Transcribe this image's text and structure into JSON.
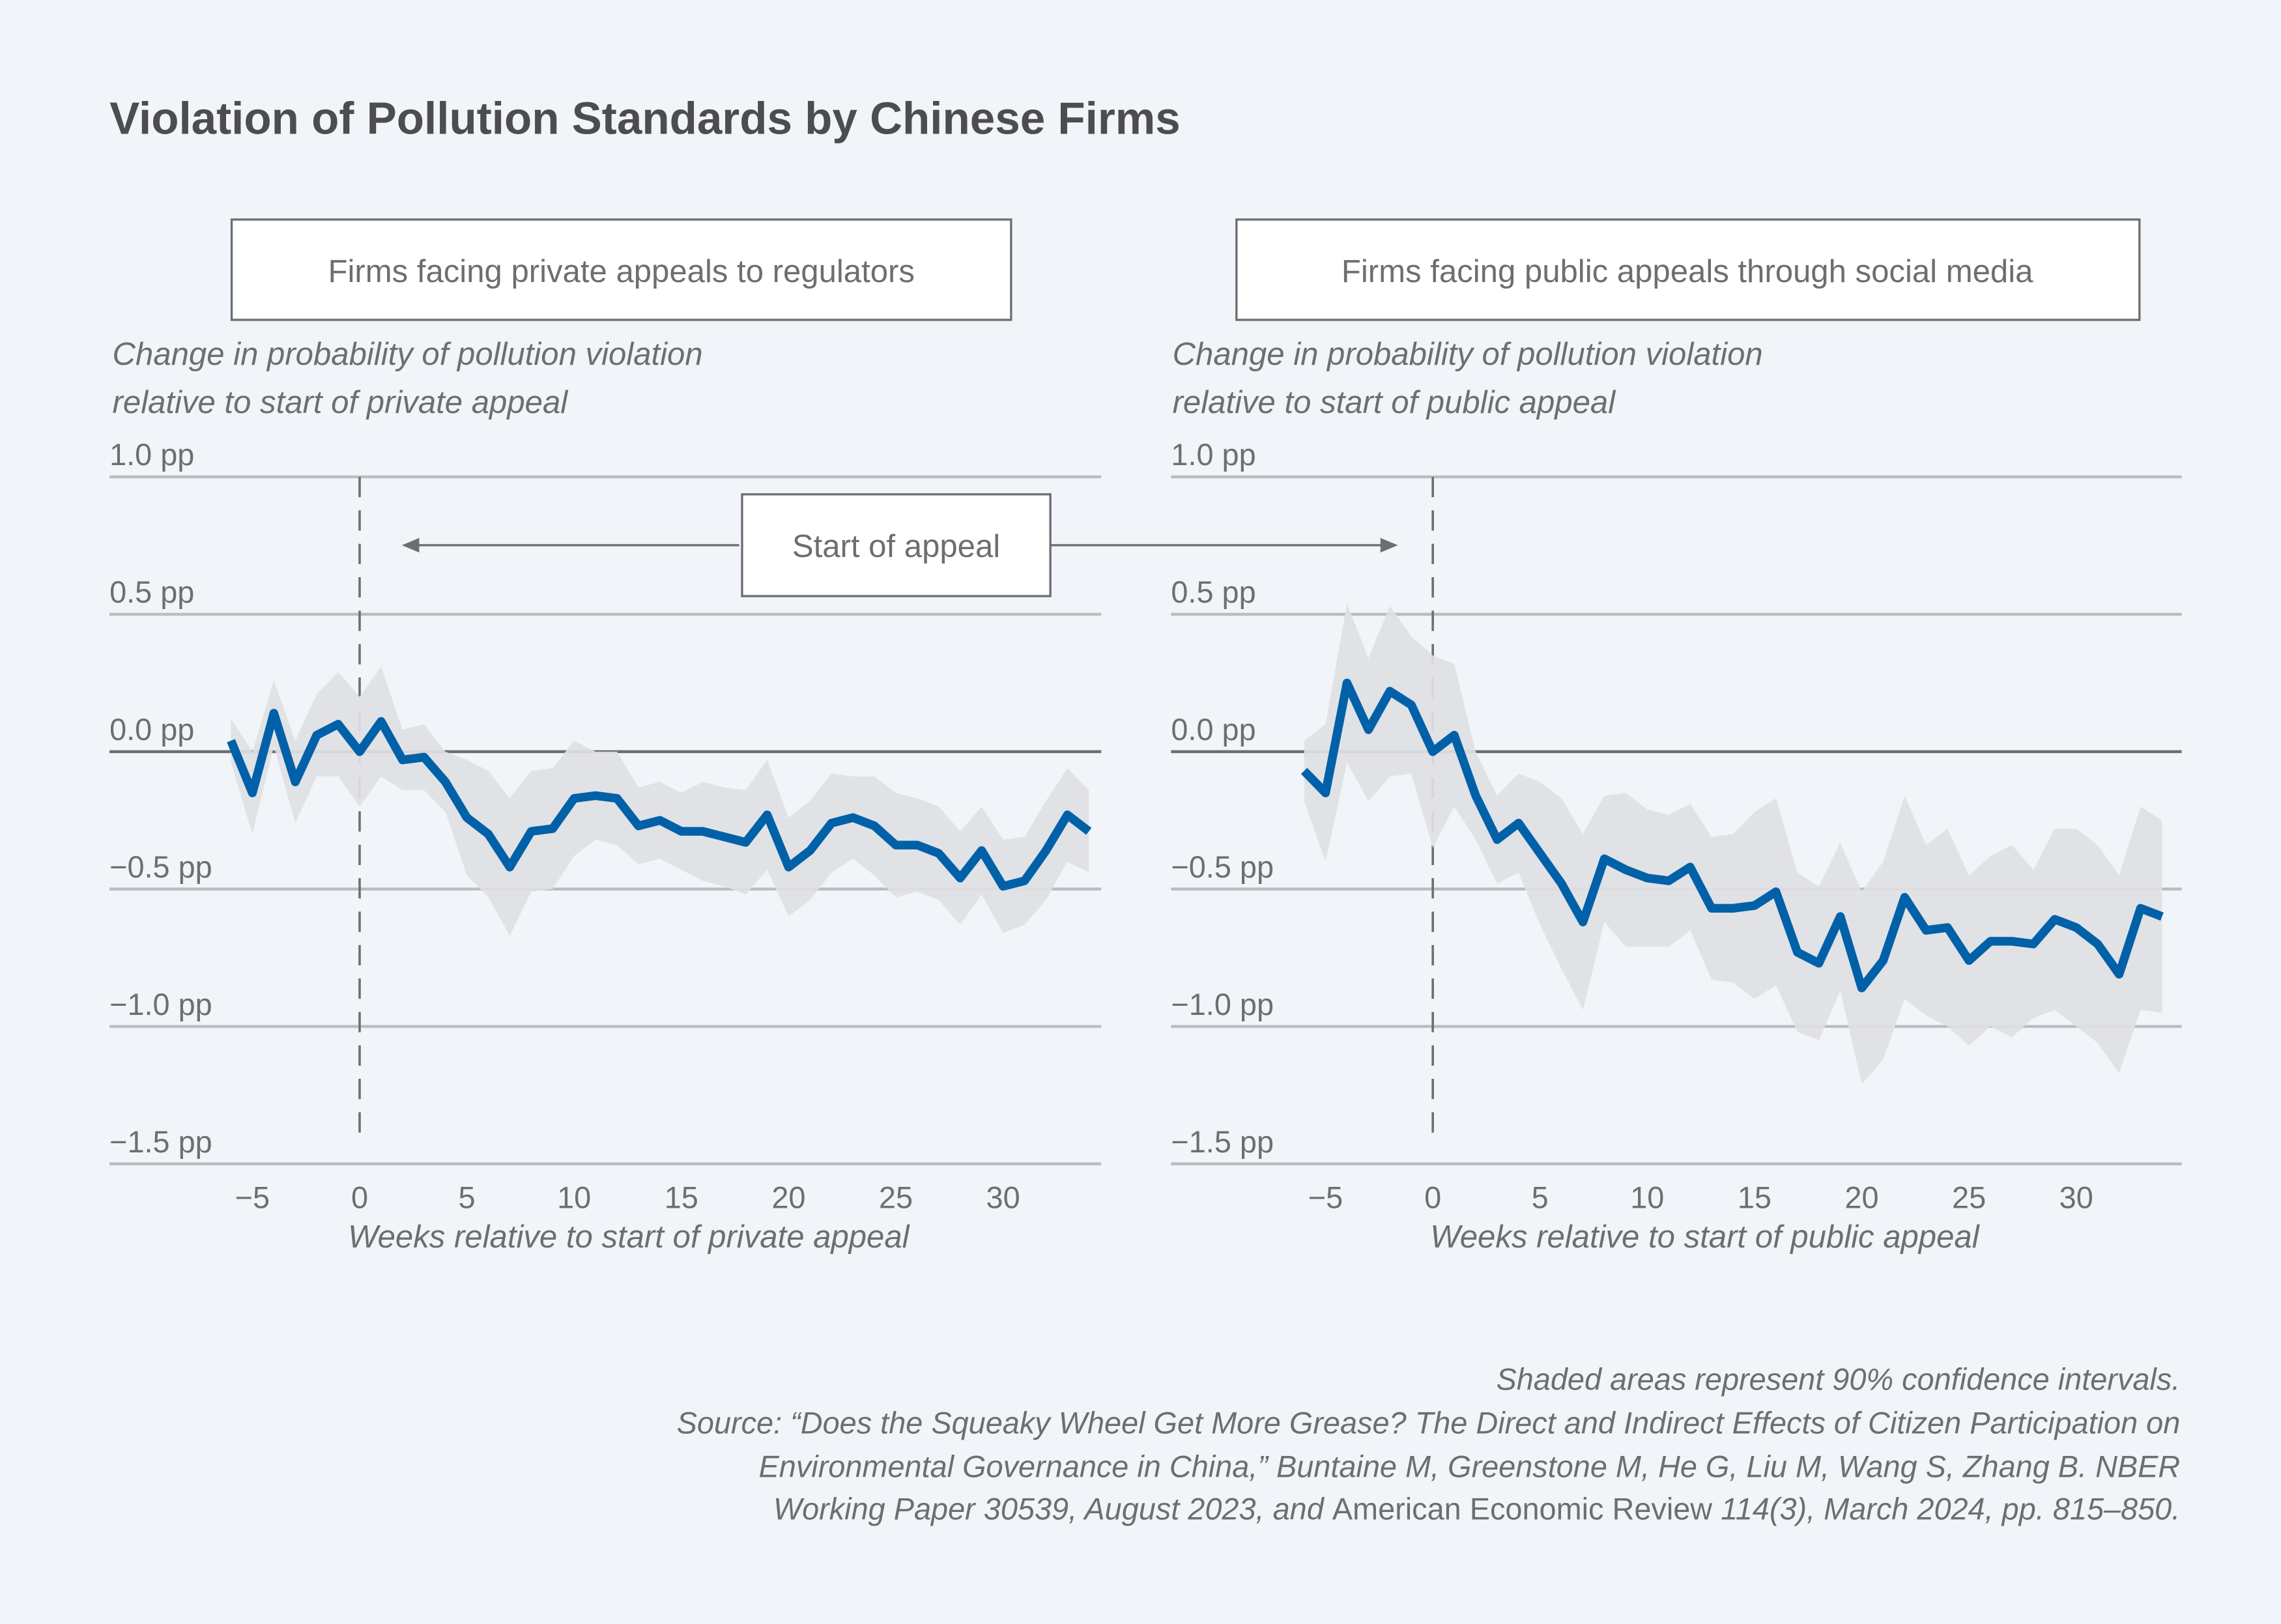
{
  "title": "Violation of Pollution Standards by Chinese Firms",
  "annotation": "Start of appeal",
  "colors": {
    "line": "#0061a8",
    "ci": "#dfe0e4",
    "background": "#f1f5f9",
    "text": "#6d6e71"
  },
  "footnote": {
    "line1": "Shaded areas represent 90% confidence intervals.",
    "line2": "Source: “Does the Squeaky Wheel Get More Grease? The Direct and Indirect Effects of Citizen Participation on",
    "line3": "Environmental Governance in China,” Buntaine M, Greenstone M, He G, Liu M, Wang S, Zhang B. NBER",
    "line4a": "Working Paper 30539, August 2023, and ",
    "line4b": "American Economic Review",
    "line4c": " 114(3), March 2024, pp. 815–850."
  },
  "chart_data": [
    {
      "type": "line",
      "panel_title": "Firms facing private appeals to regulators",
      "ylabel_line1": "Change in probability of pollution violation",
      "ylabel_line2": "relative to start of private appeal",
      "xlabel": "Weeks relative to start of private appeal",
      "ylim": [
        -1.5,
        1.0
      ],
      "yticks": [
        1.0,
        0.5,
        0.0,
        -0.5,
        -1.0,
        -1.5
      ],
      "ytick_labels": [
        "1.0 pp",
        "0.5 pp",
        "0.0 pp",
        "−0.5 pp",
        "−1.0 pp",
        "−1.5 pp"
      ],
      "xticks": [
        -5,
        0,
        5,
        10,
        15,
        20,
        25,
        30
      ],
      "xtick_labels": [
        "−5",
        "0",
        "5",
        "10",
        "15",
        "20",
        "25",
        "30"
      ],
      "reference_line_x": 0,
      "grid": true,
      "x": [
        -6,
        -5,
        -4,
        -3,
        -2,
        -1,
        0,
        1,
        2,
        3,
        4,
        5,
        6,
        7,
        8,
        9,
        10,
        11,
        12,
        13,
        14,
        15,
        16,
        17,
        18,
        19,
        20,
        21,
        22,
        23,
        24,
        25,
        26,
        27,
        28,
        29,
        30,
        31,
        32,
        33,
        34
      ],
      "values": [
        0.04,
        -0.15,
        0.14,
        -0.11,
        0.06,
        0.1,
        0,
        0.11,
        -0.03,
        -0.02,
        -0.11,
        -0.24,
        -0.3,
        -0.42,
        -0.29,
        -0.28,
        -0.17,
        -0.16,
        -0.17,
        -0.27,
        -0.25,
        -0.29,
        -0.29,
        -0.31,
        -0.33,
        -0.23,
        -0.42,
        -0.36,
        -0.26,
        -0.24,
        -0.27,
        -0.34,
        -0.34,
        -0.37,
        -0.46,
        -0.36,
        -0.49,
        -0.47,
        -0.36,
        -0.23,
        -0.29
      ],
      "ci_upper": [
        0.12,
        0.0,
        0.26,
        0.04,
        0.21,
        0.29,
        0.2,
        0.31,
        0.08,
        0.1,
        0.0,
        -0.03,
        -0.07,
        -0.17,
        -0.07,
        -0.06,
        0.04,
        0.0,
        0.0,
        -0.13,
        -0.11,
        -0.15,
        -0.11,
        -0.13,
        -0.14,
        -0.03,
        -0.24,
        -0.18,
        -0.08,
        -0.09,
        -0.09,
        -0.15,
        -0.17,
        -0.2,
        -0.29,
        -0.2,
        -0.32,
        -0.31,
        -0.18,
        -0.06,
        -0.14
      ],
      "ci_lower": [
        -0.04,
        -0.3,
        0.02,
        -0.26,
        -0.09,
        -0.09,
        -0.2,
        -0.09,
        -0.14,
        -0.14,
        -0.22,
        -0.45,
        -0.53,
        -0.67,
        -0.51,
        -0.5,
        -0.38,
        -0.32,
        -0.34,
        -0.41,
        -0.39,
        -0.43,
        -0.47,
        -0.49,
        -0.52,
        -0.43,
        -0.6,
        -0.54,
        -0.44,
        -0.39,
        -0.45,
        -0.53,
        -0.51,
        -0.54,
        -0.63,
        -0.52,
        -0.66,
        -0.63,
        -0.54,
        -0.4,
        -0.44
      ]
    },
    {
      "type": "line",
      "panel_title": "Firms facing public appeals through social media",
      "ylabel_line1": "Change in probability of pollution violation",
      "ylabel_line2": "relative to start of public appeal",
      "xlabel": "Weeks relative to start of public appeal",
      "ylim": [
        -1.5,
        1.0
      ],
      "yticks": [
        1.0,
        0.5,
        0.0,
        -0.5,
        -1.0,
        -1.5
      ],
      "ytick_labels": [
        "1.0 pp",
        "0.5 pp",
        "0.0 pp",
        "−0.5 pp",
        "−1.0 pp",
        "−1.5 pp"
      ],
      "xticks": [
        -5,
        0,
        5,
        10,
        15,
        20,
        25,
        30
      ],
      "xtick_labels": [
        "−5",
        "0",
        "5",
        "10",
        "15",
        "20",
        "25",
        "30"
      ],
      "reference_line_x": 0,
      "grid": true,
      "x": [
        -6,
        -5,
        -4,
        -3,
        -2,
        -1,
        0,
        1,
        2,
        3,
        4,
        5,
        6,
        7,
        8,
        9,
        10,
        11,
        12,
        13,
        14,
        15,
        16,
        17,
        18,
        19,
        20,
        21,
        22,
        23,
        24,
        25,
        26,
        27,
        28,
        29,
        30,
        31,
        32,
        33,
        34
      ],
      "values": [
        -0.07,
        -0.15,
        0.25,
        0.08,
        0.22,
        0.17,
        0.0,
        0.06,
        -0.16,
        -0.32,
        -0.26,
        -0.37,
        -0.48,
        -0.62,
        -0.39,
        -0.43,
        -0.46,
        -0.47,
        -0.42,
        -0.57,
        -0.57,
        -0.56,
        -0.51,
        -0.73,
        -0.77,
        -0.6,
        -0.86,
        -0.76,
        -0.53,
        -0.65,
        -0.64,
        -0.76,
        -0.69,
        -0.69,
        -0.7,
        -0.61,
        -0.64,
        -0.7,
        -0.81,
        -0.57,
        -0.6
      ],
      "ci_upper": [
        0.04,
        0.1,
        0.54,
        0.34,
        0.53,
        0.42,
        0.35,
        0.32,
        0.0,
        -0.16,
        -0.08,
        -0.11,
        -0.17,
        -0.3,
        -0.16,
        -0.15,
        -0.21,
        -0.23,
        -0.19,
        -0.31,
        -0.3,
        -0.22,
        -0.17,
        -0.44,
        -0.49,
        -0.33,
        -0.51,
        -0.4,
        -0.16,
        -0.34,
        -0.28,
        -0.45,
        -0.38,
        -0.34,
        -0.43,
        -0.28,
        -0.28,
        -0.34,
        -0.45,
        -0.2,
        -0.25
      ],
      "ci_lower": [
        -0.18,
        -0.4,
        -0.04,
        -0.18,
        -0.09,
        -0.08,
        -0.35,
        -0.2,
        -0.32,
        -0.48,
        -0.44,
        -0.63,
        -0.79,
        -0.94,
        -0.62,
        -0.71,
        -0.71,
        -0.71,
        -0.65,
        -0.83,
        -0.84,
        -0.9,
        -0.85,
        -1.02,
        -1.05,
        -0.87,
        -1.21,
        -1.12,
        -0.9,
        -0.96,
        -1.0,
        -1.07,
        -1.0,
        -1.04,
        -0.97,
        -0.94,
        -1.0,
        -1.06,
        -1.17,
        -0.94,
        -0.95
      ]
    }
  ]
}
